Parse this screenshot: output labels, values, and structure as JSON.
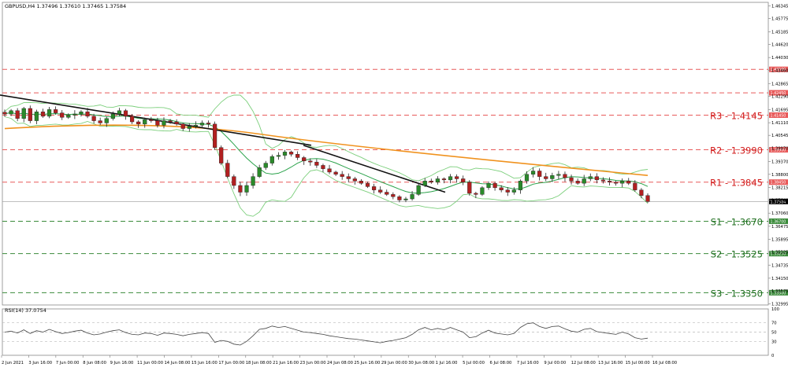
{
  "chart_data": {
    "type": "candlestick",
    "instrument_header": "GBPUSD,H4  1.37496 1.37610 1.37465 1.37584",
    "current_price": 1.37584,
    "price_axis_ticks": [
      "1.46345",
      "1.45775",
      "1.45185",
      "1.44620",
      "1.44030",
      "1.43460",
      "1.42865",
      "1.42290",
      "1.41695",
      "1.41110",
      "1.40545",
      "1.39970",
      "1.39370",
      "1.38800",
      "1.38215",
      "1.37640",
      "1.37060",
      "1.36475",
      "1.35895",
      "1.35325",
      "1.34735",
      "1.34150",
      "1.33575",
      "1.32995"
    ],
    "ylim": [
      1.3295,
      1.465
    ],
    "time_axis_labels": [
      "2 Jun 2021",
      "3 Jun 16:00",
      "7 Jun 00:00",
      "8 Jun 08:00",
      "9 Jun 16:00",
      "11 Jun 00:00",
      "14 Jun 08:00",
      "15 Jun 16:00",
      "17 Jun 00:00",
      "18 Jun 08:00",
      "21 Jun 16:00",
      "23 Jun 00:00",
      "24 Jun 08:00",
      "25 Jun 16:00",
      "29 Jun 00:00",
      "30 Jun 08:00",
      "1 Jul 16:00",
      "5 Jul 00:00",
      "6 Jul 08:00",
      "7 Jul 16:00",
      "9 Jul 00:00",
      "12 Jul 08:00",
      "13 Jul 16:00",
      "15 Jul 00:00",
      "16 Jul 08:00"
    ],
    "resistance_levels": [
      {
        "label": "R3 - 1.4145",
        "value": 1.4145,
        "tag": "1.41450"
      },
      {
        "label": "R2 - 1.3990",
        "value": 1.399,
        "tag": "1.39900"
      },
      {
        "label": "R1 - 1.3845",
        "value": 1.3845,
        "tag": "1.38450"
      }
    ],
    "support_levels": [
      {
        "label": "S1 - 1.3670",
        "value": 1.367,
        "tag": "1.36700"
      },
      {
        "label": "S2 - 1.3525",
        "value": 1.3525,
        "tag": "1.35250"
      },
      {
        "label": "S3 - 1.3350",
        "value": 1.335,
        "tag": "1.33500"
      }
    ],
    "extra_dashed_levels": [
      {
        "value": 1.435,
        "tag": "1.43500"
      },
      {
        "value": 1.4245,
        "tag": "1.42450"
      }
    ],
    "close_path": [
      1.415,
      1.4165,
      1.413,
      1.4175,
      1.412,
      1.416,
      1.414,
      1.417,
      1.4155,
      1.4135,
      1.4145,
      1.415,
      1.416,
      1.414,
      1.412,
      1.411,
      1.413,
      1.415,
      1.4165,
      1.414,
      1.4115,
      1.4105,
      1.4125,
      1.412,
      1.41,
      1.412,
      1.4115,
      1.4105,
      1.4085,
      1.4095,
      1.41,
      1.411,
      1.4105,
      1.4,
      1.393,
      1.387,
      1.383,
      1.38,
      1.383,
      1.387,
      1.391,
      1.393,
      1.396,
      1.3965,
      1.398,
      1.397,
      1.3955,
      1.394,
      1.3935,
      1.392,
      1.3905,
      1.389,
      1.388,
      1.387,
      1.386,
      1.385,
      1.384,
      1.3825,
      1.381,
      1.38,
      1.379,
      1.378,
      1.3765,
      1.377,
      1.379,
      1.383,
      1.385,
      1.3845,
      1.386,
      1.3855,
      1.387,
      1.386,
      1.3845,
      1.3795,
      1.379,
      1.382,
      1.384,
      1.382,
      1.381,
      1.38,
      1.381,
      1.385,
      1.388,
      1.3895,
      1.387,
      1.386,
      1.3875,
      1.388,
      1.3865,
      1.385,
      1.384,
      1.386,
      1.387,
      1.3855,
      1.385,
      1.3845,
      1.384,
      1.385,
      1.384,
      1.381,
      1.3785,
      1.3758
    ],
    "ma_200_endpoints": {
      "start": 1.4085,
      "peak_mid": 1.411,
      "end": 1.3875
    },
    "trendlines": [
      {
        "from": 1.4235,
        "to": 1.401
      },
      {
        "from": 1.401,
        "to": 1.38
      }
    ],
    "rsi": {
      "header": "RSI(14) 37.0754",
      "value": 37.0754,
      "scale_labels": [
        "100",
        "70",
        "50",
        "30",
        "0"
      ],
      "levels": [
        70,
        50,
        30
      ],
      "path": [
        50,
        52,
        48,
        55,
        47,
        53,
        50,
        56,
        51,
        47,
        49,
        52,
        54,
        48,
        44,
        46,
        50,
        53,
        55,
        49,
        45,
        44,
        48,
        47,
        43,
        48,
        47,
        45,
        42,
        45,
        47,
        49,
        47,
        28,
        32,
        30,
        24,
        22,
        30,
        42,
        56,
        58,
        63,
        60,
        62,
        58,
        54,
        50,
        49,
        47,
        45,
        42,
        40,
        38,
        36,
        35,
        33,
        31,
        29,
        27,
        30,
        32,
        35,
        38,
        45,
        55,
        60,
        55,
        58,
        55,
        60,
        55,
        50,
        38,
        40,
        48,
        54,
        48,
        46,
        44,
        47,
        60,
        68,
        70,
        62,
        58,
        62,
        63,
        57,
        52,
        50,
        56,
        58,
        51,
        49,
        47,
        45,
        50,
        46,
        38,
        35,
        37
      ]
    }
  }
}
